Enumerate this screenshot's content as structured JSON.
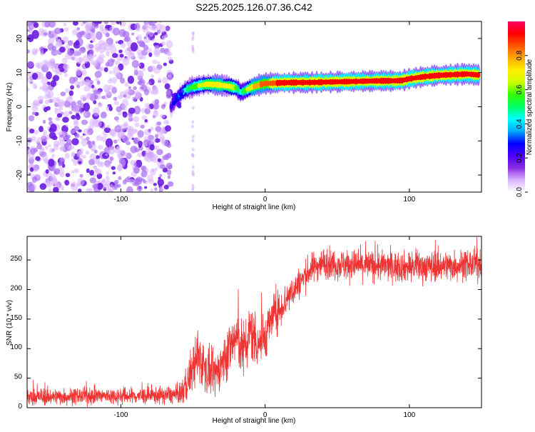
{
  "title": "S225.2025.126.07.36.C42",
  "chart_data": [
    {
      "type": "heatmap",
      "xlabel": "Height of straight line (km)",
      "ylabel": "Frequency (Hz)",
      "xlim": [
        -165,
        150
      ],
      "ylim": [
        -25,
        25
      ],
      "xticks": [
        -100,
        0,
        100
      ],
      "yticks": [
        -20,
        -10,
        0,
        10,
        20
      ],
      "grid": false,
      "colorbar": {
        "label": "Normalized spectral amplitude",
        "range": [
          0,
          1
        ],
        "ticks": [
          "0.0",
          "0.2",
          "0.4",
          "0.6",
          "0.8"
        ],
        "colors": [
          "#ffffff",
          "#d9b3ff",
          "#8a2be2",
          "#4b00ff",
          "#0000ff",
          "#00aaff",
          "#00ffff",
          "#00ff66",
          "#33ff00",
          "#ccff00",
          "#ffee00",
          "#ffaa00",
          "#ff5500",
          "#ff0000",
          "#ff0066"
        ]
      },
      "noise_region": {
        "x": [
          -165,
          -65
        ],
        "y": [
          -25,
          25
        ]
      },
      "ridge": {
        "x": [
          -65,
          -62,
          -60,
          -58,
          -55,
          -50,
          -45,
          -40,
          -35,
          -30,
          -25,
          -20,
          -17,
          -15,
          -10,
          -5,
          0,
          10,
          20,
          30,
          40,
          50,
          60,
          70,
          80,
          90,
          95,
          100,
          110,
          120,
          130,
          140,
          148
        ],
        "y": [
          0,
          2,
          3,
          4,
          5,
          5.8,
          6.3,
          6.6,
          6.5,
          6.3,
          6.0,
          5.5,
          4.3,
          4.5,
          5.6,
          6.3,
          6.8,
          7.0,
          7.1,
          7.1,
          7.2,
          7.3,
          7.4,
          7.5,
          7.6,
          7.6,
          7.7,
          8.2,
          8.8,
          9.2,
          9.4,
          9.6,
          9.3
        ],
        "amplitude": [
          0.2,
          0.3,
          0.35,
          0.4,
          0.45,
          0.55,
          0.65,
          0.7,
          0.72,
          0.72,
          0.7,
          0.6,
          0.45,
          0.5,
          0.7,
          0.8,
          0.85,
          0.9,
          0.92,
          0.93,
          0.94,
          0.95,
          0.95,
          0.95,
          0.94,
          0.93,
          0.93,
          0.94,
          0.95,
          0.95,
          0.95,
          0.95,
          0.9
        ]
      }
    },
    {
      "type": "line",
      "xlabel": "Height of straight line (km)",
      "ylabel": "SNR (10 * v/v)",
      "xlim": [
        -165,
        150
      ],
      "ylim": [
        0,
        290
      ],
      "xticks": [
        -100,
        0,
        100
      ],
      "yticks": [
        0,
        50,
        100,
        150,
        200,
        250
      ],
      "grid": false,
      "series": [
        {
          "color": "#ee3333",
          "x": [
            -165,
            -140,
            -120,
            -100,
            -80,
            -60,
            -55,
            -50,
            -45,
            -40,
            -35,
            -30,
            -25,
            -20,
            -15,
            -10,
            -5,
            0,
            5,
            10,
            15,
            20,
            25,
            30,
            35,
            40,
            60,
            80,
            100,
            120,
            140,
            150
          ],
          "y": [
            18,
            19,
            20,
            20,
            20,
            22,
            35,
            70,
            85,
            60,
            55,
            75,
            100,
            120,
            95,
            130,
            110,
            120,
            155,
            165,
            185,
            200,
            215,
            230,
            240,
            245,
            242,
            240,
            238,
            240,
            242,
            243
          ],
          "noise": [
            22,
            22,
            22,
            22,
            22,
            24,
            45,
            65,
            70,
            60,
            55,
            60,
            70,
            80,
            75,
            80,
            70,
            60,
            55,
            50,
            45,
            42,
            40,
            40,
            40,
            40,
            40,
            40,
            40,
            40,
            40,
            40
          ]
        }
      ]
    }
  ]
}
